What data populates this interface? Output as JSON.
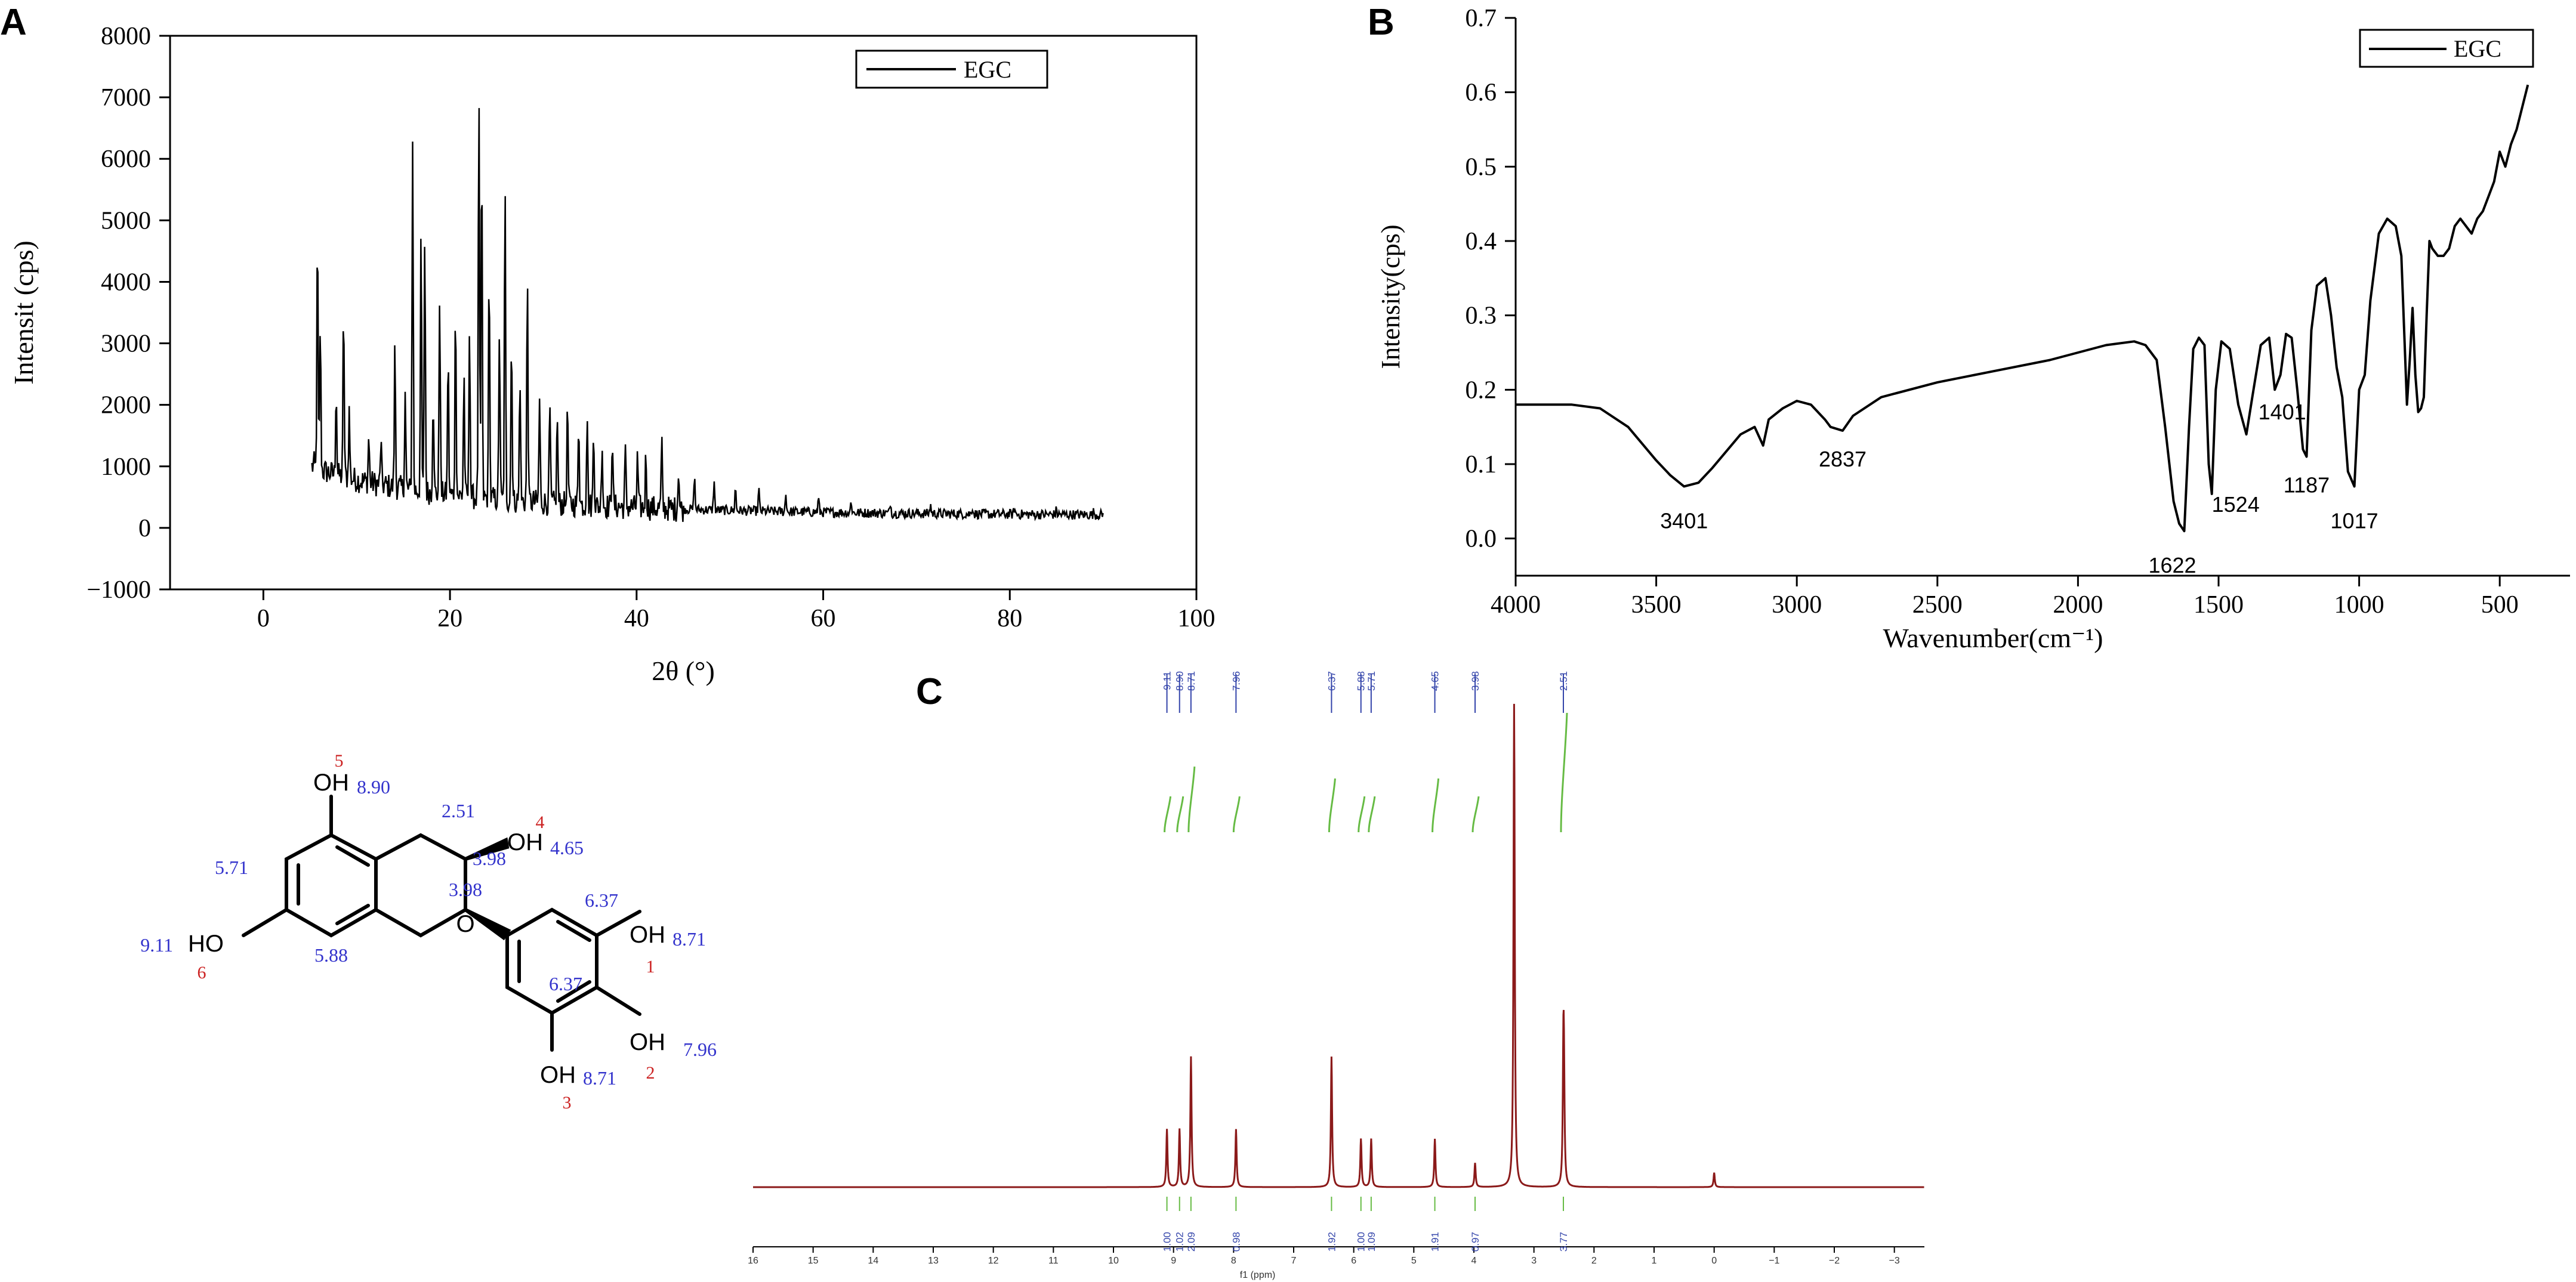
{
  "panels": {
    "A": "A",
    "B": "B",
    "C": "C"
  },
  "chart_data": [
    {
      "panel": "A",
      "type": "line",
      "xlabel": "2θ (°)",
      "ylabel": "Intensit (cps)",
      "xlim": [
        -10,
        100
      ],
      "ylim": [
        -1000,
        8000
      ],
      "xticks": [
        0,
        20,
        40,
        60,
        80,
        100
      ],
      "yticks": [
        -1000,
        0,
        1000,
        2000,
        3000,
        4000,
        5000,
        6000,
        7000,
        8000
      ],
      "xtick_labels": [
        "0",
        "20",
        "40",
        "60",
        "80",
        "100"
      ],
      "ytick_labels": [
        "−1000",
        "0",
        "1000",
        "2000",
        "3000",
        "4000",
        "5000",
        "6000",
        "7000",
        "8000"
      ],
      "legend_position": "top-right",
      "grid": false,
      "series": [
        {
          "name": "EGC",
          "color": "#000000",
          "peaks": [
            [
              5.4,
              1050
            ],
            [
              5.8,
              4750
            ],
            [
              6.1,
              3300
            ],
            [
              7.8,
              2300
            ],
            [
              8.6,
              3550
            ],
            [
              9.2,
              1900
            ],
            [
              11.3,
              1500
            ],
            [
              12.6,
              1400
            ],
            [
              14.1,
              2950
            ],
            [
              15.2,
              2200
            ],
            [
              16.0,
              6400
            ],
            [
              16.9,
              4700
            ],
            [
              17.3,
              4850
            ],
            [
              18.2,
              2200
            ],
            [
              18.9,
              3850
            ],
            [
              19.8,
              2800
            ],
            [
              20.6,
              3650
            ],
            [
              21.5,
              2500
            ],
            [
              22.1,
              3350
            ],
            [
              23.1,
              7050
            ],
            [
              23.4,
              6200
            ],
            [
              24.2,
              4300
            ],
            [
              25.3,
              3300
            ],
            [
              25.9,
              5500
            ],
            [
              26.6,
              3200
            ],
            [
              27.5,
              2500
            ],
            [
              28.3,
              4100
            ],
            [
              29.6,
              2100
            ],
            [
              30.7,
              2000
            ],
            [
              31.5,
              1850
            ],
            [
              32.6,
              2000
            ],
            [
              33.8,
              1800
            ],
            [
              34.7,
              1900
            ],
            [
              35.4,
              1650
            ],
            [
              36.3,
              1400
            ],
            [
              37.4,
              1550
            ],
            [
              38.8,
              1250
            ],
            [
              40.1,
              1150
            ],
            [
              41.0,
              1200
            ],
            [
              42.7,
              1350
            ],
            [
              44.5,
              1000
            ],
            [
              46.2,
              850
            ],
            [
              48.3,
              750
            ],
            [
              50.6,
              650
            ],
            [
              53.1,
              620
            ],
            [
              56.0,
              550
            ],
            [
              59.5,
              480
            ],
            [
              63.0,
              440
            ],
            [
              67.2,
              420
            ],
            [
              71.5,
              380
            ],
            [
              76.0,
              350
            ],
            [
              80.5,
              320
            ],
            [
              85.0,
              290
            ],
            [
              89.0,
              260
            ]
          ]
        }
      ]
    },
    {
      "panel": "B",
      "type": "line",
      "xlabel": "Wavenumber(cm⁻¹)",
      "ylabel": "Intensity(cps)",
      "xlim": [
        4000,
        250
      ],
      "ylim": [
        -0.05,
        0.7
      ],
      "xticks": [
        4000,
        3500,
        3000,
        2500,
        2000,
        1500,
        1000,
        500
      ],
      "yticks": [
        0.0,
        0.1,
        0.2,
        0.3,
        0.4,
        0.5,
        0.6,
        0.7
      ],
      "xtick_labels": [
        "4000",
        "3500",
        "3000",
        "2500",
        "2000",
        "1500",
        "1000",
        "500"
      ],
      "ytick_labels": [
        "0.0",
        "0.1",
        "0.2",
        "0.3",
        "0.4",
        "0.5",
        "0.6",
        "0.7"
      ],
      "legend_position": "top-right",
      "grid": false,
      "series": [
        {
          "name": "EGC",
          "color": "#000000",
          "x": [
            4000,
            3800,
            3700,
            3600,
            3500,
            3450,
            3401,
            3350,
            3300,
            3200,
            3150,
            3120,
            3100,
            3050,
            3000,
            2950,
            2900,
            2880,
            2837,
            2800,
            2700,
            2500,
            2300,
            2100,
            2000,
            1900,
            1800,
            1760,
            1720,
            1690,
            1660,
            1640,
            1622,
            1605,
            1590,
            1570,
            1550,
            1535,
            1524,
            1510,
            1490,
            1460,
            1430,
            1401,
            1380,
            1350,
            1320,
            1300,
            1280,
            1260,
            1240,
            1220,
            1200,
            1187,
            1170,
            1150,
            1120,
            1100,
            1080,
            1060,
            1040,
            1017,
            1000,
            980,
            960,
            930,
            900,
            870,
            850,
            830,
            820,
            810,
            800,
            790,
            780,
            770,
            760,
            750,
            740,
            720,
            700,
            680,
            660,
            640,
            620,
            600,
            580,
            560,
            540,
            520,
            500,
            480,
            460,
            440,
            420,
            400
          ],
          "y": [
            0.18,
            0.18,
            0.175,
            0.15,
            0.105,
            0.085,
            0.07,
            0.075,
            0.095,
            0.14,
            0.15,
            0.125,
            0.16,
            0.175,
            0.185,
            0.18,
            0.16,
            0.15,
            0.145,
            0.165,
            0.19,
            0.21,
            0.225,
            0.24,
            0.25,
            0.26,
            0.265,
            0.26,
            0.24,
            0.15,
            0.05,
            0.02,
            0.01,
            0.15,
            0.255,
            0.27,
            0.26,
            0.1,
            0.06,
            0.2,
            0.265,
            0.255,
            0.18,
            0.14,
            0.19,
            0.26,
            0.27,
            0.2,
            0.22,
            0.275,
            0.27,
            0.2,
            0.12,
            0.11,
            0.28,
            0.34,
            0.35,
            0.3,
            0.23,
            0.19,
            0.09,
            0.07,
            0.2,
            0.22,
            0.32,
            0.41,
            0.43,
            0.42,
            0.38,
            0.18,
            0.24,
            0.31,
            0.22,
            0.17,
            0.175,
            0.19,
            0.3,
            0.4,
            0.39,
            0.38,
            0.38,
            0.39,
            0.42,
            0.43,
            0.42,
            0.41,
            0.43,
            0.44,
            0.46,
            0.48,
            0.52,
            0.5,
            0.53,
            0.55,
            0.58,
            0.61
          ]
        }
      ],
      "annotations": [
        {
          "label": "3401",
          "x": 3401,
          "y": 0.07
        },
        {
          "label": "2837",
          "x": 2837,
          "y": 0.145
        },
        {
          "label": "1622",
          "x": 1622,
          "y": 0.01
        },
        {
          "label": "1524",
          "x": 1524,
          "y": 0.06
        },
        {
          "label": "1401",
          "x": 1401,
          "y": 0.14
        },
        {
          "label": "1187",
          "x": 1187,
          "y": 0.11
        },
        {
          "label": "1017",
          "x": 1017,
          "y": 0.07
        }
      ]
    },
    {
      "panel": "C",
      "type": "line",
      "xlabel": "f1 (ppm)",
      "xlim": [
        16,
        -3.5
      ],
      "xticks": [
        16,
        15,
        14,
        13,
        12,
        11,
        10,
        9,
        8,
        7,
        6,
        5,
        4,
        3,
        2,
        1,
        0,
        -1,
        -2,
        -3
      ],
      "xtick_labels": [
        "16",
        "15",
        "14",
        "13",
        "12",
        "11",
        "10",
        "9",
        "8",
        "7",
        "6",
        "5",
        "4",
        "3",
        "2",
        "1",
        "0",
        "−1",
        "−2",
        "−3"
      ],
      "grid": false,
      "series": [
        {
          "name": "",
          "color": "#8b1a1a",
          "peaks": [
            [
              9.11,
              0.12
            ],
            [
              8.9,
              0.12
            ],
            [
              8.71,
              0.27
            ],
            [
              7.96,
              0.12
            ],
            [
              6.37,
              0.27
            ],
            [
              5.88,
              0.1
            ],
            [
              5.71,
              0.1
            ],
            [
              4.65,
              0.1
            ],
            [
              3.98,
              0.05
            ],
            [
              3.33,
              1.0
            ],
            [
              2.51,
              0.25
            ],
            [
              2.5,
              0.18
            ],
            [
              0.0,
              0.03
            ]
          ]
        }
      ],
      "peak_labels_top": [
        "9.11",
        "8.90",
        "8.71",
        "7.96",
        "6.37",
        "5.88",
        "5.71",
        "4.65",
        "3.98",
        "2.51"
      ],
      "peak_label_x": [
        9.11,
        8.9,
        8.71,
        7.96,
        6.37,
        5.88,
        5.71,
        4.65,
        3.98,
        2.51
      ],
      "integrals": [
        {
          "x": 9.11,
          "label": "1.00"
        },
        {
          "x": 8.9,
          "label": "1.02"
        },
        {
          "x": 8.71,
          "label": "2.09"
        },
        {
          "x": 7.96,
          "label": "0.98"
        },
        {
          "x": 6.37,
          "label": "1.92"
        },
        {
          "x": 5.88,
          "label": "1.00"
        },
        {
          "x": 5.71,
          "label": "1.09"
        },
        {
          "x": 4.65,
          "label": "1.91"
        },
        {
          "x": 3.98,
          "label": "0.97"
        },
        {
          "x": 2.51,
          "label": "3.77"
        }
      ]
    }
  ],
  "structure": {
    "hydroxyls": [
      {
        "group": "OH",
        "shift": "8.90",
        "num": "5"
      },
      {
        "group": "OH",
        "shift": "4.65",
        "num": "4"
      },
      {
        "group": "OH",
        "shift": "8.71",
        "num": "1"
      },
      {
        "group": "OH",
        "shift": "7.96",
        "num": "2"
      },
      {
        "group": "OH",
        "shift": "8.71",
        "num": "3"
      },
      {
        "group": "HO",
        "shift": "9.11",
        "num": "6"
      }
    ],
    "h_shifts": [
      "2.51",
      "3.98",
      "3.98",
      "5.71",
      "5.88",
      "6.37",
      "6.37"
    ],
    "ring_oxygen": "O",
    "colors": {
      "shift": "#3333cc",
      "num": "#cc2222",
      "bond": "#000000"
    }
  }
}
